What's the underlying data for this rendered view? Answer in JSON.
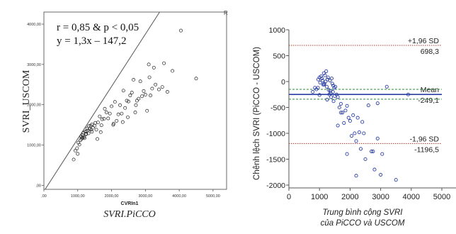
{
  "chart_data": [
    {
      "type": "scatter",
      "xlabel": "CVRIn1",
      "ylabel": "SVRI_USCOM",
      "caption": "SVRI.PiCCO",
      "annotation": [
        "r = 0,85 & p < 0,05",
        "y = 1,3x – 147,2"
      ],
      "corner_mark": "R",
      "xlim": [
        0,
        5400
      ],
      "ylim": [
        -100,
        4300
      ],
      "x_ticks": [
        0,
        1000,
        2000,
        3000,
        4000,
        5000
      ],
      "x_tick_labels": [
        ",00",
        "1000,00",
        "2000,00",
        "3000,00",
        "4000,00",
        "5000,00"
      ],
      "y_ticks": [
        0,
        1000,
        2000,
        3000,
        4000
      ],
      "y_tick_labels": [
        ",00",
        "1000,00",
        "2000,00",
        "3000,00",
        "4000,00"
      ],
      "fit_line": {
        "slope": 1.3,
        "intercept": -147.2
      },
      "colors": {
        "fit": "#555555",
        "points": "#222222",
        "frame": "#444444"
      },
      "grid": false,
      "x": [
        880,
        930,
        980,
        1000,
        1020,
        1050,
        1080,
        1100,
        1110,
        1130,
        1150,
        1170,
        1190,
        1200,
        1220,
        1250,
        1260,
        1280,
        1300,
        1320,
        1350,
        1380,
        1400,
        1420,
        1450,
        1500,
        1520,
        1550,
        1600,
        1650,
        1700,
        1720,
        1780,
        1800,
        1850,
        1900,
        1950,
        2000,
        2050,
        2100,
        2150,
        2200,
        2250,
        2300,
        2350,
        2400,
        2450,
        2500,
        2550,
        2600,
        2650,
        2700,
        2750,
        2800,
        2850,
        2900,
        2950,
        3000,
        3050,
        3100,
        3150,
        3200,
        3250,
        3300,
        3400,
        3500,
        3550,
        3650,
        3800,
        4050,
        4500,
        1150,
        1240,
        1330,
        1420,
        2060,
        2330,
        1580,
        1680,
        2480,
        2720,
        3120
      ],
      "y": [
        640,
        860,
        920,
        780,
        1060,
        1010,
        1120,
        1210,
        1150,
        1190,
        1250,
        1300,
        1200,
        1170,
        1330,
        1280,
        1340,
        1410,
        1360,
        1290,
        1400,
        1480,
        1380,
        1330,
        1430,
        1480,
        1550,
        1380,
        1560,
        1710,
        1490,
        1640,
        1650,
        1900,
        1810,
        1660,
        1780,
        1960,
        1500,
        2070,
        1600,
        1760,
        1990,
        1780,
        2350,
        1920,
        2100,
        2080,
        2230,
        2300,
        2620,
        1810,
        2100,
        2150,
        2580,
        2210,
        2340,
        2250,
        1850,
        3000,
        2230,
        2400,
        2920,
        2500,
        2380,
        2440,
        3030,
        2320,
        2840,
        3840,
        2650,
        1180,
        1260,
        1470,
        1510,
        1530,
        1570,
        1150,
        1320,
        1690,
        1990,
        2680
      ]
    },
    {
      "type": "scatter",
      "subtype": "bland-altman",
      "xlabel": [
        "Trung bình cộng SVRI",
        "của PiCCO và USCOM"
      ],
      "ylabel": "Chênh lệch SVRI (PiCCO - USCOM)",
      "xlim": [
        0,
        5000
      ],
      "ylim": [
        -2000,
        1000
      ],
      "x_ticks": [
        0,
        1000,
        2000,
        3000,
        4000,
        5000
      ],
      "y_ticks": [
        -2000,
        -1500,
        -1000,
        -500,
        0,
        500,
        1000
      ],
      "reference_lines": [
        {
          "name": "+1,96 SD",
          "value": 698.3,
          "label": "698,3",
          "color": "#b03a2e",
          "style": "dotted"
        },
        {
          "name": "Mean",
          "value": -249.1,
          "label": "-249,1",
          "color": "#2b3fa3",
          "style": "solid"
        },
        {
          "name": "-1,96 SD",
          "value": -1196.5,
          "label": "-1196,5",
          "color": "#b03a2e",
          "style": "dotted"
        },
        {
          "name": "",
          "value": -150,
          "label": "",
          "color": "#2e8b3a",
          "style": "dashed"
        },
        {
          "name": "",
          "value": -340,
          "label": "",
          "color": "#2e8b3a",
          "style": "dashed"
        }
      ],
      "colors": {
        "points": "#2b3fa3",
        "frame": "#555555"
      },
      "grid": false,
      "x": [
        780,
        850,
        900,
        960,
        1000,
        1020,
        1050,
        1080,
        1100,
        1120,
        1140,
        1160,
        1180,
        1200,
        1220,
        1240,
        1260,
        1280,
        1300,
        1320,
        1340,
        1360,
        1380,
        1400,
        1420,
        1440,
        1460,
        1480,
        1500,
        1520,
        1560,
        1600,
        1650,
        1700,
        1750,
        1800,
        1850,
        1900,
        1950,
        2000,
        2050,
        2100,
        2150,
        2200,
        2250,
        2300,
        2350,
        2400,
        2500,
        2600,
        2700,
        2800,
        2900,
        3000,
        3200,
        3500,
        3900,
        1250,
        1350,
        1450,
        2450,
        2900,
        3050,
        1700,
        1900,
        1150,
        1600,
        2750,
        2200,
        1000,
        950
      ],
      "y": [
        -200,
        -120,
        -150,
        40,
        80,
        -20,
        100,
        60,
        20,
        -60,
        160,
        -40,
        120,
        0,
        200,
        -100,
        40,
        80,
        -160,
        -250,
        20,
        -220,
        -300,
        60,
        -40,
        -200,
        -380,
        -120,
        -280,
        -100,
        -250,
        -300,
        -500,
        -430,
        -600,
        -800,
        -560,
        -470,
        -700,
        -760,
        -1050,
        -650,
        -1000,
        -1150,
        -700,
        -980,
        -1300,
        -780,
        -1500,
        -460,
        -1350,
        -1700,
        -1100,
        -1800,
        -100,
        -1900,
        -250,
        -350,
        -180,
        -80,
        -1000,
        -420,
        -1400,
        -600,
        -1400,
        -60,
        -850,
        -1350,
        -1820,
        -260,
        -120
      ]
    }
  ]
}
